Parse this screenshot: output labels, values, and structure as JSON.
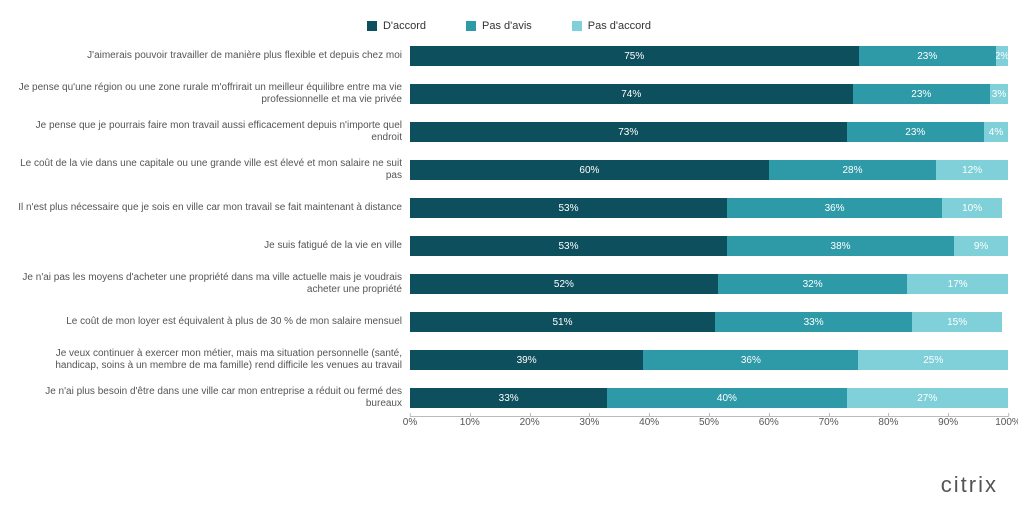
{
  "chart": {
    "type": "stacked-horizontal-bar",
    "background_color": "#ffffff",
    "label_fontsize": 10,
    "value_fontsize": 10,
    "value_text_color": "#ffffff",
    "xlim": [
      0,
      100
    ],
    "xtick_step": 10,
    "series": [
      {
        "key": "agree",
        "label": "D'accord",
        "color": "#0d4f5c"
      },
      {
        "key": "neutral",
        "label": "Pas d'avis",
        "color": "#2e9aa8"
      },
      {
        "key": "disagree",
        "label": "Pas d'accord",
        "color": "#7fd0d8"
      }
    ],
    "rows": [
      {
        "label": "J'aimerais pouvoir travailler de manière plus flexible et depuis chez moi",
        "agree": 75,
        "neutral": 23,
        "disagree": 2
      },
      {
        "label": "Je pense qu'une région ou une zone rurale m'offrirait un meilleur équilibre entre ma vie professionnelle et ma vie privée",
        "agree": 74,
        "neutral": 23,
        "disagree": 3
      },
      {
        "label": "Je pense que je pourrais faire mon travail aussi efficacement depuis n'importe quel endroit",
        "agree": 73,
        "neutral": 23,
        "disagree": 4
      },
      {
        "label": "Le coût de la vie dans une capitale ou une grande ville est élevé et mon salaire ne suit pas",
        "agree": 60,
        "neutral": 28,
        "disagree": 12
      },
      {
        "label": "Il n'est plus nécessaire que je sois en ville car mon travail se fait maintenant à distance",
        "agree": 53,
        "neutral": 36,
        "disagree": 10
      },
      {
        "label": "Je suis fatigué de la vie en ville",
        "agree": 53,
        "neutral": 38,
        "disagree": 9
      },
      {
        "label": "Je n'ai pas les moyens d'acheter une propriété dans ma ville actuelle mais je voudrais acheter une propriété",
        "agree": 52,
        "neutral": 32,
        "disagree": 17
      },
      {
        "label": "Le coût de mon loyer est équivalent à plus de 30 % de mon salaire mensuel",
        "agree": 51,
        "neutral": 33,
        "disagree": 15
      },
      {
        "label": "Je veux continuer à exercer mon métier, mais ma situation personnelle (santé, handicap, soins à un membre de ma famille) rend difficile les venues au travail",
        "agree": 39,
        "neutral": 36,
        "disagree": 25
      },
      {
        "label": "Je n'ai plus besoin d'être dans une ville car mon entreprise a réduit ou fermé des bureaux",
        "agree": 33,
        "neutral": 40,
        "disagree": 27
      }
    ]
  },
  "logo_text": "citrix"
}
